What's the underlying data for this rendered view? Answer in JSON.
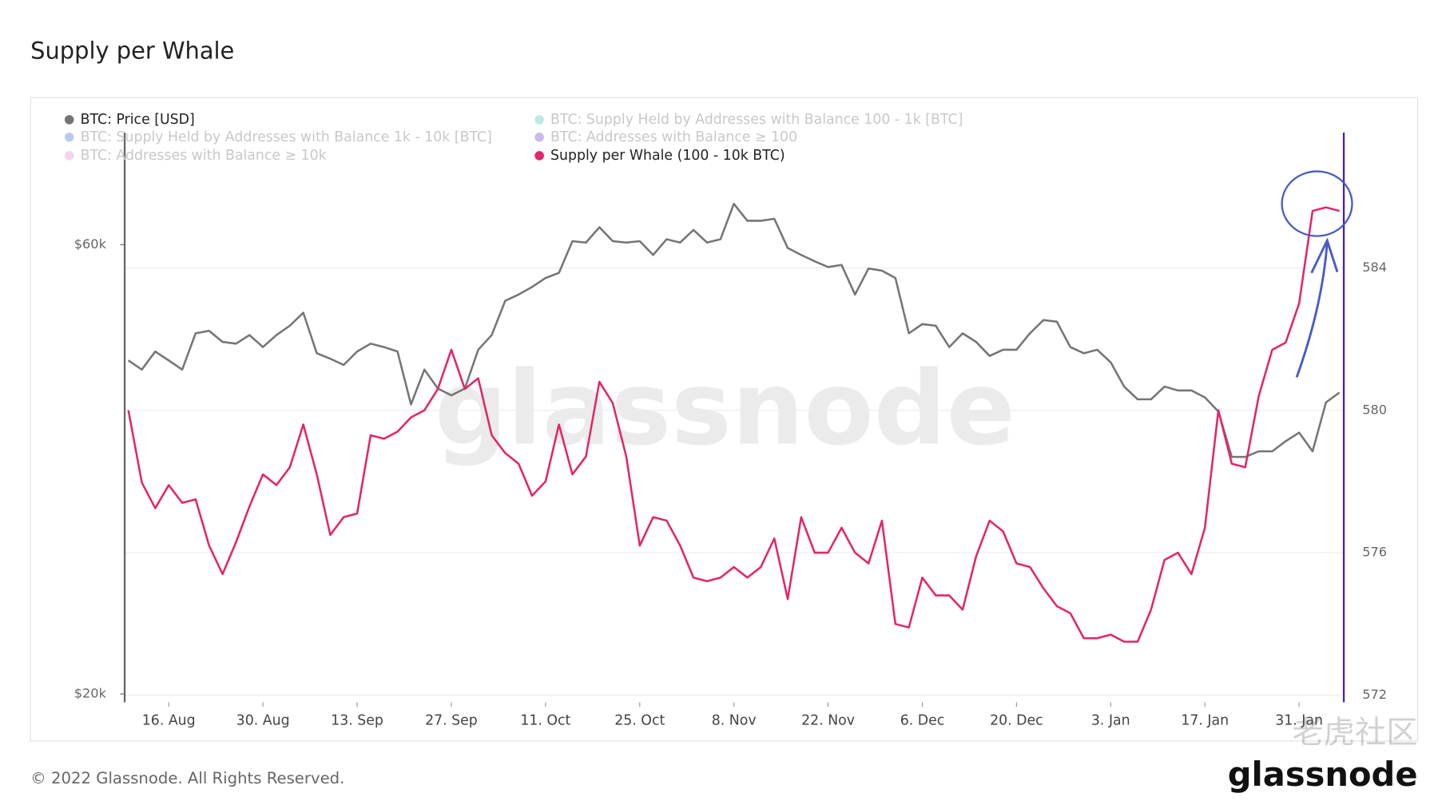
{
  "chart_data": {
    "type": "line",
    "title": "Supply per Whale",
    "categories": [
      null,
      null,
      null,
      "16. Aug",
      null,
      null,
      null,
      null,
      null,
      null,
      "30. Aug",
      null,
      null,
      null,
      null,
      null,
      null,
      "13. Sep",
      null,
      null,
      null,
      null,
      null,
      null,
      "27. Sep",
      null,
      null,
      null,
      null,
      null,
      null,
      "11. Oct",
      null,
      null,
      null,
      null,
      null,
      null,
      "25. Oct",
      null,
      null,
      null,
      null,
      null,
      null,
      "8. Nov",
      null,
      null,
      null,
      null,
      null,
      null,
      "22. Nov",
      null,
      null,
      null,
      null,
      null,
      null,
      "6. Dec",
      null,
      null,
      null,
      null,
      null,
      null,
      "20. Dec",
      null,
      null,
      null,
      null,
      null,
      null,
      "3. Jan",
      null,
      null,
      null,
      null,
      null,
      null,
      "17. Jan",
      null,
      null,
      null,
      null,
      null,
      null,
      "31. Jan",
      null,
      null,
      null
    ],
    "series": [
      {
        "name": "BTC: Price [USD]",
        "color": "#757575",
        "axis": "y",
        "values": [
          45200,
          44200,
          46200,
          45200,
          44200,
          48300,
          48600,
          47300,
          47100,
          48100,
          46700,
          48100,
          49200,
          50800,
          46000,
          45400,
          44700,
          46200,
          47100,
          46700,
          46200,
          40600,
          44200,
          42200,
          41500,
          42200,
          46400,
          48100,
          52300,
          53100,
          54100,
          55300,
          56000,
          60500,
          60300,
          62600,
          60500,
          60300,
          60500,
          58500,
          60800,
          60300,
          62200,
          60300,
          60800,
          66300,
          63600,
          63600,
          63900,
          59500,
          58500,
          57600,
          56800,
          57100,
          53100,
          56600,
          56300,
          55300,
          48300,
          49400,
          49200,
          46700,
          48300,
          47300,
          45700,
          46400,
          46400,
          48300,
          49900,
          49700,
          46700,
          46000,
          46400,
          45000,
          42400,
          41100,
          41100,
          42400,
          42000,
          42000,
          41300,
          39900,
          35700,
          35700,
          36200,
          36200,
          37100,
          37900,
          36200,
          40800,
          41800
        ]
      },
      {
        "name": "BTC: Supply Held by Addresses with Balance 100 - 1k [BTC]",
        "color": "#2ab3a6",
        "hidden": true
      },
      {
        "name": "BTC: Supply Held by Addresses with Balance 1k - 10k [BTC]",
        "color": "#1f4fbf",
        "hidden": true
      },
      {
        "name": "BTC: Addresses with Balance ≥ 100",
        "color": "#4b1fa8",
        "hidden": true
      },
      {
        "name": "BTC: Addresses with Balance ≥ 10k",
        "color": "#d46fc4",
        "hidden": true
      },
      {
        "name": "Supply per Whale (100 - 10k BTC)",
        "color": "#e3256b",
        "axis": "y2",
        "values": [
          580,
          577.97,
          577.25,
          577.9,
          577.4,
          577.5,
          576.2,
          575.4,
          576.3,
          577.3,
          578.2,
          577.9,
          578.4,
          579.6,
          578.2,
          576.5,
          577.0,
          577.1,
          579.3,
          579.2,
          579.4,
          579.8,
          580.0,
          580.6,
          581.7,
          580.6,
          580.9,
          579.3,
          578.8,
          578.5,
          577.6,
          578.0,
          579.6,
          578.2,
          578.7,
          580.8,
          580.2,
          578.7,
          576.2,
          577.0,
          576.9,
          576.2,
          575.3,
          575.2,
          575.3,
          575.6,
          575.3,
          575.6,
          576.4,
          574.7,
          577.0,
          576.0,
          576.0,
          576.7,
          576.0,
          575.7,
          576.9,
          574.0,
          573.9,
          575.3,
          574.8,
          574.8,
          574.4,
          575.9,
          576.9,
          576.6,
          575.7,
          575.6,
          575.0,
          574.5,
          574.3,
          573.6,
          573.6,
          573.7,
          573.5,
          573.5,
          574.4,
          575.8,
          576.0,
          575.4,
          576.7,
          580.0,
          578.5,
          578.4,
          580.4,
          581.7,
          581.9,
          583.0,
          585.6,
          585.7,
          585.6
        ]
      }
    ],
    "ylim": [
      19600,
      78900
    ],
    "log_y": true,
    "yticks": [
      {
        "value": 20000,
        "label": "$20k"
      },
      {
        "value": 60000,
        "label": "$60k"
      }
    ],
    "y2lim": [
      571.8,
      587.8
    ],
    "y2ticks": [
      572,
      576,
      580,
      584
    ],
    "grid": true
  },
  "copyright": "© 2022 Glassnode. All Rights Reserved.",
  "watermark": "glassnode",
  "logo": "glassnode",
  "community_watermark": "老虎社区"
}
